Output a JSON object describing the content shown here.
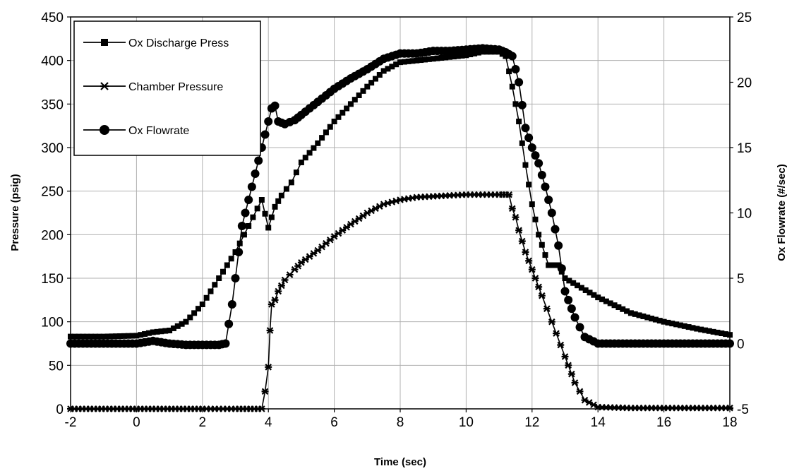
{
  "chart_data": {
    "type": "line",
    "xlabel": "Time (sec)",
    "ylabel": "Pressure (psig)",
    "y2label": "Ox Flowrate (#/sec)",
    "xlim": [
      -2,
      18
    ],
    "ylim": [
      0,
      450
    ],
    "y2lim": [
      -5,
      25
    ],
    "xticks": [
      "-2",
      "0",
      "2",
      "4",
      "6",
      "8",
      "10",
      "12",
      "14",
      "16",
      "18"
    ],
    "yticks": [
      "0",
      "50",
      "100",
      "150",
      "200",
      "250",
      "300",
      "350",
      "400",
      "450"
    ],
    "y2ticks": [
      "-5",
      "0",
      "5",
      "10",
      "15",
      "20",
      "25"
    ],
    "grid": true,
    "legend_position": "top-left",
    "series": [
      {
        "name": "Ox Discharge Press",
        "marker": "square",
        "axis": "left",
        "x": [
          -2,
          -1,
          0,
          0.5,
          1,
          1.5,
          2,
          2.5,
          3,
          3.4,
          3.8,
          4.0,
          4.2,
          4.4,
          4.7,
          5,
          5.5,
          6,
          6.5,
          7,
          7.5,
          8,
          8.5,
          9,
          9.5,
          10,
          10.5,
          11,
          11.2,
          11.4,
          11.6,
          11.8,
          12.0,
          12.2,
          12.5,
          12.8,
          13,
          14,
          15,
          16,
          17,
          18
        ],
        "y": [
          83,
          83,
          84,
          88,
          90,
          100,
          120,
          150,
          180,
          210,
          240,
          208,
          232,
          245,
          260,
          283,
          305,
          330,
          350,
          370,
          388,
          398,
          400,
          402,
          404,
          406,
          410,
          410,
          405,
          370,
          330,
          280,
          235,
          200,
          165,
          165,
          150,
          128,
          110,
          100,
          92,
          85
        ]
      },
      {
        "name": "Chamber Pressure",
        "marker": "x",
        "axis": "left",
        "x": [
          -2,
          0,
          2,
          3,
          3.8,
          3.9,
          4.0,
          4.05,
          4.1,
          4.2,
          4.3,
          4.5,
          4.8,
          5,
          5.5,
          6,
          6.5,
          7,
          7.5,
          8,
          8.5,
          9,
          9.5,
          10,
          10.5,
          11,
          11.3,
          11.4,
          11.5,
          11.6,
          11.8,
          12,
          12.3,
          12.6,
          13,
          13.3,
          13.6,
          14,
          15,
          16,
          17,
          18
        ],
        "y": [
          0,
          0,
          0,
          0,
          0,
          20,
          48,
          90,
          120,
          125,
          135,
          148,
          160,
          168,
          182,
          198,
          212,
          225,
          235,
          240,
          243,
          244,
          245,
          246,
          246,
          246,
          246,
          230,
          220,
          205,
          180,
          160,
          130,
          100,
          60,
          30,
          10,
          2,
          1,
          1,
          1,
          1
        ]
      },
      {
        "name": "Ox Flowrate",
        "marker": "circle",
        "axis": "right",
        "x": [
          -2,
          -1,
          0,
          0.5,
          1,
          1.5,
          2,
          2.5,
          2.7,
          2.9,
          3,
          3.1,
          3.2,
          3.4,
          3.6,
          3.8,
          4.0,
          4.1,
          4.2,
          4.3,
          4.5,
          4.8,
          5,
          5.5,
          6,
          6.5,
          7,
          7.5,
          8,
          8.5,
          9,
          9.5,
          10,
          10.5,
          11,
          11.2,
          11.4,
          11.6,
          11.8,
          12,
          12.2,
          12.4,
          12.6,
          12.8,
          13,
          13.3,
          13.6,
          14,
          15,
          16,
          17,
          18
        ],
        "y": [
          0,
          0,
          0,
          0.2,
          0,
          -0.1,
          -0.1,
          -0.1,
          0,
          3,
          5,
          7,
          9,
          11,
          13,
          15,
          17,
          18,
          18.2,
          17,
          16.8,
          17.1,
          17.5,
          18.5,
          19.5,
          20.3,
          21,
          21.8,
          22.2,
          22.2,
          22.4,
          22.4,
          22.5,
          22.6,
          22.5,
          22.3,
          22,
          20,
          16.5,
          15,
          13.8,
          12,
          10,
          7.5,
          4,
          2,
          0.5,
          0,
          0,
          0,
          0,
          0
        ]
      }
    ]
  }
}
